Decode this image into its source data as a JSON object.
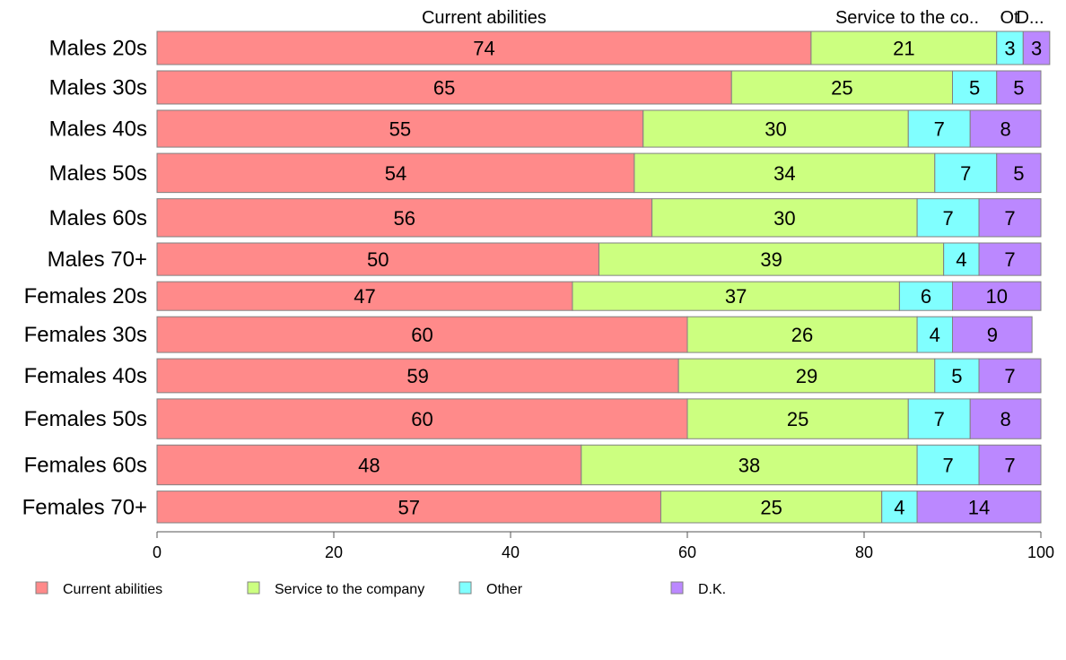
{
  "chart_data": {
    "type": "bar",
    "orientation": "horizontal",
    "stacked": true,
    "categories": [
      "Males 20s",
      "Males 30s",
      "Males 40s",
      "Males 50s",
      "Males 60s",
      "Males 70+",
      "Females 20s",
      "Females 30s",
      "Females 40s",
      "Females 50s",
      "Females 60s",
      "Females 70+"
    ],
    "category_weights": [
      0.9,
      0.9,
      1.0,
      1.06,
      1.03,
      0.88,
      0.78,
      0.97,
      0.92,
      1.08,
      1.08,
      0.86
    ],
    "series": [
      {
        "name": "Current abilities",
        "color": "#ff8a8a",
        "values": [
          74,
          65,
          55,
          54,
          56,
          50,
          47,
          60,
          59,
          60,
          48,
          57
        ]
      },
      {
        "name": "Service to the company",
        "color": "#ccff80",
        "values": [
          21,
          25,
          30,
          34,
          30,
          39,
          37,
          26,
          29,
          25,
          38,
          25
        ]
      },
      {
        "name": "Other",
        "color": "#80ffff",
        "values": [
          3,
          5,
          7,
          7,
          7,
          4,
          6,
          4,
          5,
          7,
          7,
          4
        ]
      },
      {
        "name": "D.K.",
        "color": "#bb88ff",
        "values": [
          3,
          5,
          8,
          5,
          7,
          7,
          10,
          9,
          7,
          8,
          7,
          14
        ]
      }
    ],
    "top_labels": [
      "Current abilities",
      "Service to the co..",
      "Ot",
      "D..."
    ],
    "xlim": [
      0,
      100
    ],
    "xticks": [
      0,
      20,
      40,
      60,
      80,
      100
    ],
    "legend": "bottom",
    "grid": false
  }
}
